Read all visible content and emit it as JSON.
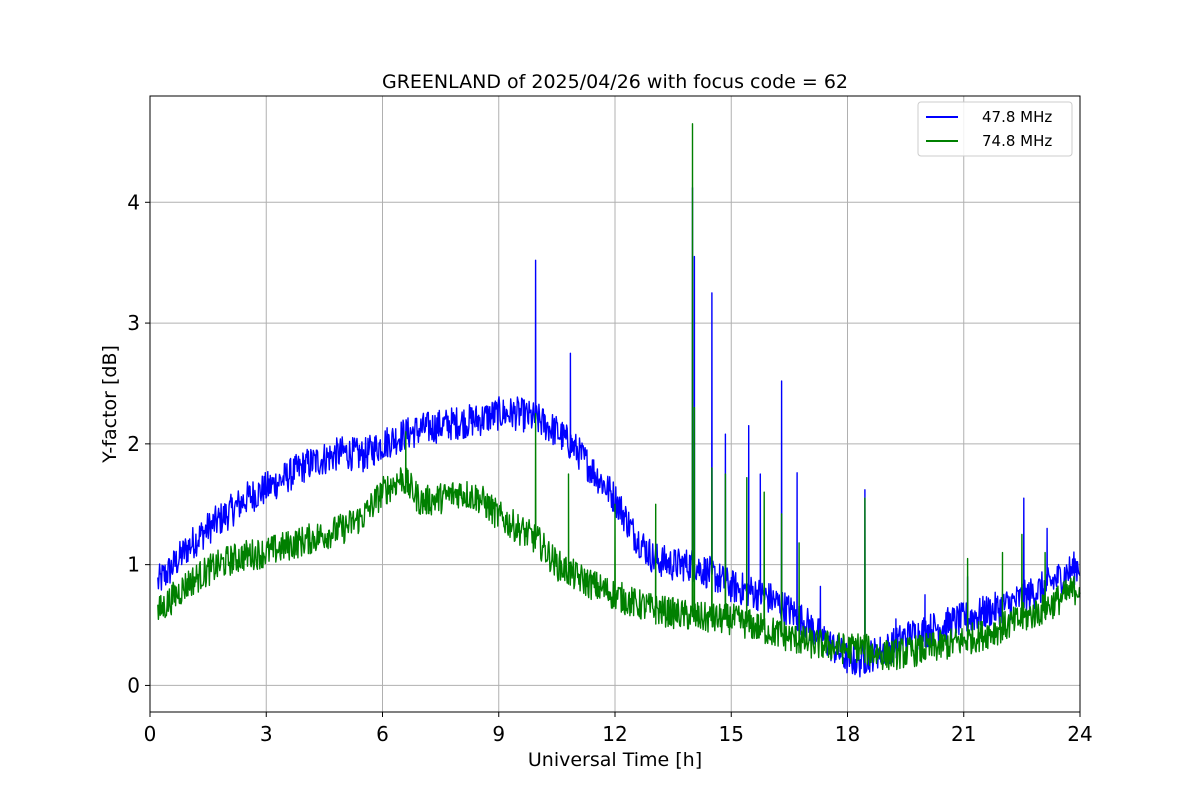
{
  "chart_data": {
    "type": "line",
    "title": "GREENLAND of 2025/04/26 with focus code = 62",
    "xlabel": "Universal Time [h]",
    "ylabel": "Y-factor [dB]",
    "xlim": [
      0,
      24
    ],
    "ylim": [
      -0.22,
      4.88
    ],
    "xticks": [
      0,
      3,
      6,
      9,
      12,
      15,
      18,
      21,
      24
    ],
    "yticks": [
      0,
      1,
      2,
      3,
      4
    ],
    "grid": true,
    "legend_position": "top-right",
    "series": [
      {
        "name": "47.8 MHz",
        "color": "#0000ff",
        "noise": 0.14,
        "x": [
          0.2,
          0.5,
          1.0,
          1.5,
          2.0,
          2.5,
          3.0,
          3.5,
          4.0,
          4.5,
          5.0,
          5.5,
          6.0,
          6.5,
          7.0,
          7.5,
          8.0,
          8.5,
          9.0,
          9.5,
          10.0,
          10.5,
          11.0,
          11.5,
          12.0,
          12.5,
          13.0,
          13.5,
          14.0,
          14.5,
          15.0,
          15.5,
          16.0,
          16.5,
          17.0,
          17.5,
          18.0,
          18.3,
          18.6,
          19.0,
          19.5,
          20.0,
          20.5,
          21.0,
          21.5,
          22.0,
          22.5,
          23.0,
          23.5,
          24.0
        ],
        "y": [
          0.85,
          0.95,
          1.15,
          1.3,
          1.42,
          1.55,
          1.63,
          1.72,
          1.82,
          1.88,
          1.93,
          1.9,
          2.0,
          2.07,
          2.12,
          2.15,
          2.18,
          2.2,
          2.25,
          2.25,
          2.2,
          2.1,
          1.95,
          1.75,
          1.55,
          1.25,
          1.05,
          1.0,
          1.0,
          0.92,
          0.82,
          0.78,
          0.72,
          0.62,
          0.5,
          0.35,
          0.22,
          0.2,
          0.25,
          0.3,
          0.4,
          0.45,
          0.5,
          0.55,
          0.6,
          0.65,
          0.72,
          0.8,
          0.9,
          1.0
        ],
        "spikes": [
          [
            9.95,
            3.52
          ],
          [
            10.85,
            2.75
          ],
          [
            14.0,
            4.12
          ],
          [
            14.05,
            3.55
          ],
          [
            14.5,
            3.25
          ],
          [
            14.85,
            2.08
          ],
          [
            15.45,
            2.15
          ],
          [
            15.75,
            1.75
          ],
          [
            16.3,
            2.52
          ],
          [
            16.7,
            1.76
          ],
          [
            17.3,
            0.82
          ],
          [
            18.45,
            1.62
          ],
          [
            19.25,
            0.55
          ],
          [
            20.0,
            0.75
          ],
          [
            21.1,
            0.9
          ],
          [
            22.55,
            1.55
          ],
          [
            23.15,
            1.3
          ]
        ]
      },
      {
        "name": "74.8 MHz",
        "color": "#008000",
        "noise": 0.13,
        "x": [
          0.2,
          0.5,
          1.0,
          1.5,
          2.0,
          2.5,
          3.0,
          3.5,
          4.0,
          4.5,
          5.0,
          5.5,
          6.0,
          6.5,
          7.0,
          7.5,
          8.0,
          8.5,
          9.0,
          9.5,
          10.0,
          10.5,
          11.0,
          11.5,
          12.0,
          12.5,
          13.0,
          13.5,
          14.0,
          14.5,
          15.0,
          15.5,
          16.0,
          16.5,
          17.0,
          17.5,
          18.0,
          18.3,
          18.6,
          19.0,
          19.5,
          20.0,
          20.5,
          21.0,
          21.5,
          22.0,
          22.5,
          23.0,
          23.5,
          24.0
        ],
        "y": [
          0.6,
          0.7,
          0.85,
          0.95,
          1.03,
          1.08,
          1.1,
          1.15,
          1.2,
          1.25,
          1.3,
          1.4,
          1.6,
          1.72,
          1.52,
          1.55,
          1.6,
          1.55,
          1.4,
          1.3,
          1.2,
          1.0,
          0.9,
          0.82,
          0.75,
          0.68,
          0.63,
          0.6,
          0.57,
          0.55,
          0.55,
          0.5,
          0.45,
          0.4,
          0.35,
          0.33,
          0.3,
          0.32,
          0.28,
          0.25,
          0.27,
          0.3,
          0.33,
          0.37,
          0.42,
          0.48,
          0.55,
          0.62,
          0.72,
          0.82
        ],
        "spikes": [
          [
            6.6,
            2.1
          ],
          [
            9.95,
            2.25
          ],
          [
            10.8,
            1.75
          ],
          [
            12.0,
            1.5
          ],
          [
            13.05,
            1.5
          ],
          [
            14.0,
            4.65
          ],
          [
            14.05,
            2.3
          ],
          [
            14.5,
            1.8
          ],
          [
            14.85,
            1.75
          ],
          [
            15.4,
            1.72
          ],
          [
            15.85,
            1.6
          ],
          [
            16.3,
            1.42
          ],
          [
            16.75,
            1.18
          ],
          [
            18.45,
            1.55
          ],
          [
            21.1,
            1.05
          ],
          [
            22.0,
            1.1
          ],
          [
            22.5,
            1.25
          ],
          [
            23.1,
            1.1
          ]
        ]
      }
    ]
  }
}
